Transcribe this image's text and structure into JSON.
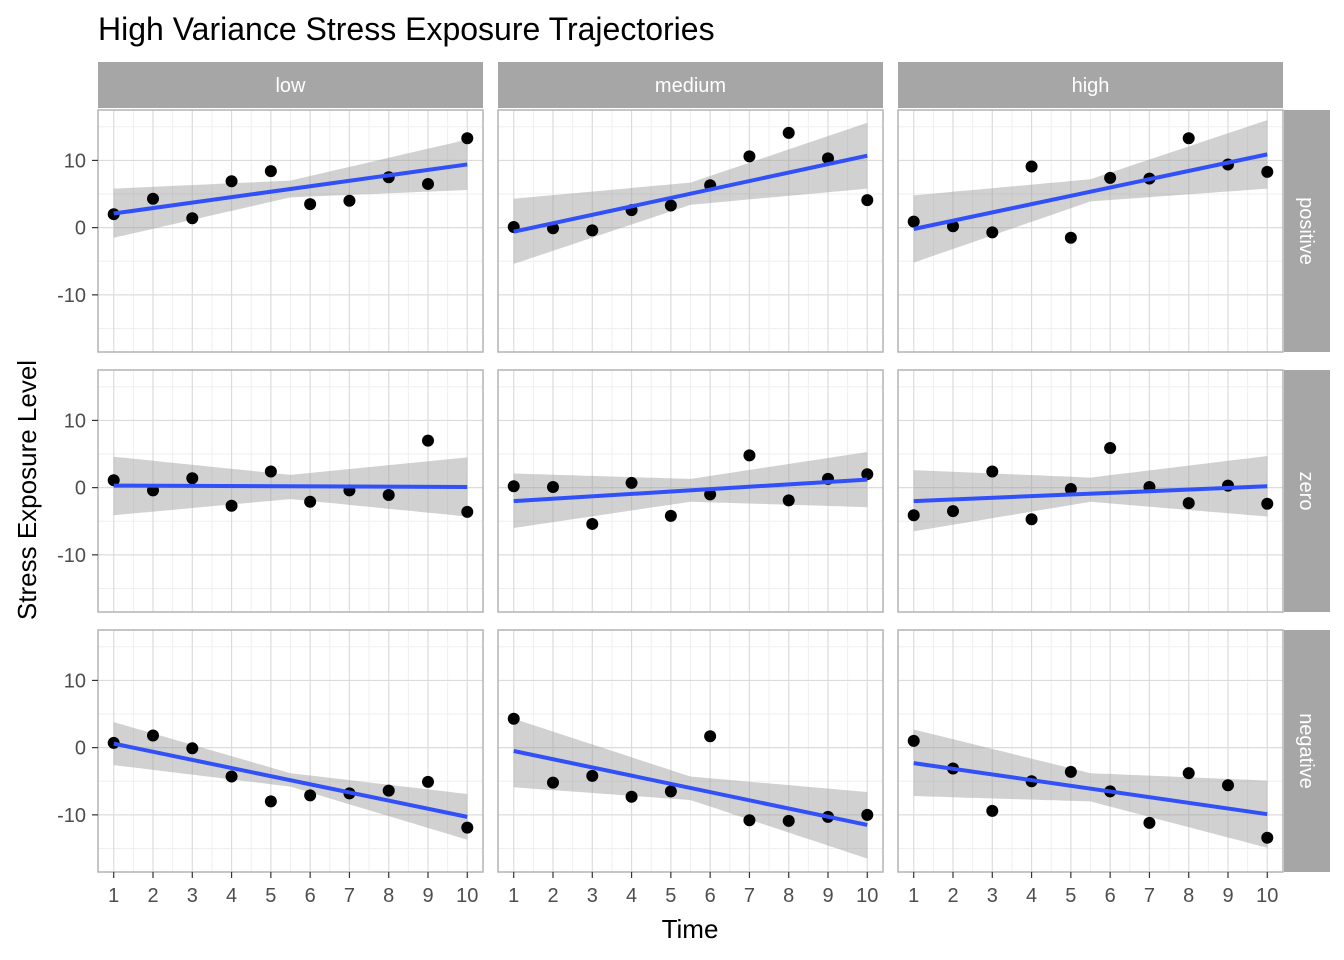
{
  "chart_data": {
    "type": "scatter",
    "title": "High Variance Stress Exposure Trajectories",
    "xlabel": "Time",
    "ylabel": "Stress Exposure Level",
    "x_ticks": [
      1,
      2,
      3,
      4,
      5,
      6,
      7,
      8,
      9,
      10
    ],
    "y_ticks": [
      -10,
      0,
      10
    ],
    "xlim": [
      0.6,
      10.4
    ],
    "ylim": [
      -18.5,
      17.5
    ],
    "grid": true,
    "facet_columns": [
      "low",
      "medium",
      "high"
    ],
    "facet_rows": [
      "positive",
      "zero",
      "negative"
    ],
    "colors": {
      "points": "#000000",
      "trend_line": "#3150f7",
      "confidence_band": "#999999",
      "strip_background": "#a6a6a6",
      "panel_border": "#b3b3b3",
      "grid_major": "#dcdcdc",
      "grid_minor": "#efefef"
    },
    "panels": [
      {
        "col": "low",
        "row": "positive",
        "points": [
          [
            1,
            2.0
          ],
          [
            2,
            4.3
          ],
          [
            3,
            1.4
          ],
          [
            4,
            6.9
          ],
          [
            5,
            8.4
          ],
          [
            6,
            3.5
          ],
          [
            7,
            4.0
          ],
          [
            8,
            7.5
          ],
          [
            9,
            6.5
          ],
          [
            10,
            13.3
          ]
        ],
        "fit": [
          [
            1,
            2.1
          ],
          [
            10,
            9.4
          ]
        ],
        "band_upper": [
          [
            1,
            5.8
          ],
          [
            5.5,
            7.0
          ],
          [
            10,
            13.1
          ]
        ],
        "band_lower": [
          [
            1,
            -1.5
          ],
          [
            5.5,
            4.5
          ],
          [
            10,
            5.6
          ]
        ]
      },
      {
        "col": "medium",
        "row": "positive",
        "points": [
          [
            1,
            0.1
          ],
          [
            2,
            -0.1
          ],
          [
            3,
            -0.4
          ],
          [
            4,
            2.6
          ],
          [
            5,
            3.3
          ],
          [
            6,
            6.3
          ],
          [
            7,
            10.6
          ],
          [
            8,
            14.1
          ],
          [
            9,
            10.3
          ],
          [
            10,
            4.1
          ]
        ],
        "fit": [
          [
            1,
            -0.6
          ],
          [
            10,
            10.7
          ]
        ],
        "band_upper": [
          [
            1,
            4.3
          ],
          [
            5.5,
            6.7
          ],
          [
            10,
            15.6
          ]
        ],
        "band_lower": [
          [
            1,
            -5.4
          ],
          [
            5.5,
            3.4
          ],
          [
            10,
            5.8
          ]
        ]
      },
      {
        "col": "high",
        "row": "positive",
        "points": [
          [
            1,
            0.9
          ],
          [
            2,
            0.2
          ],
          [
            3,
            -0.7
          ],
          [
            4,
            9.1
          ],
          [
            5,
            -1.5
          ],
          [
            6,
            7.4
          ],
          [
            7,
            7.3
          ],
          [
            8,
            13.3
          ],
          [
            9,
            9.4
          ],
          [
            10,
            8.3
          ]
        ],
        "fit": [
          [
            1,
            -0.2
          ],
          [
            10,
            10.9
          ]
        ],
        "band_upper": [
          [
            1,
            4.8
          ],
          [
            5.5,
            7.2
          ],
          [
            10,
            16.0
          ]
        ],
        "band_lower": [
          [
            1,
            -5.2
          ],
          [
            5.5,
            3.9
          ],
          [
            10,
            5.8
          ]
        ]
      },
      {
        "col": "low",
        "row": "zero",
        "points": [
          [
            1,
            1.1
          ],
          [
            2,
            -0.4
          ],
          [
            3,
            1.4
          ],
          [
            4,
            -2.7
          ],
          [
            5,
            2.4
          ],
          [
            6,
            -2.1
          ],
          [
            7,
            -0.4
          ],
          [
            8,
            -1.1
          ],
          [
            9,
            7.0
          ],
          [
            10,
            -3.6
          ]
        ],
        "fit": [
          [
            1,
            0.3
          ],
          [
            10,
            0.1
          ]
        ],
        "band_upper": [
          [
            1,
            4.6
          ],
          [
            5.5,
            1.9
          ],
          [
            10,
            4.5
          ]
        ],
        "band_lower": [
          [
            1,
            -4.1
          ],
          [
            5.5,
            -1.7
          ],
          [
            10,
            -4.3
          ]
        ]
      },
      {
        "col": "medium",
        "row": "zero",
        "points": [
          [
            1,
            0.2
          ],
          [
            2,
            0.1
          ],
          [
            3,
            -5.4
          ],
          [
            4,
            0.7
          ],
          [
            5,
            -4.2
          ],
          [
            6,
            -1.0
          ],
          [
            7,
            4.8
          ],
          [
            8,
            -1.9
          ],
          [
            9,
            1.3
          ],
          [
            10,
            2.0
          ]
        ],
        "fit": [
          [
            1,
            -2.0
          ],
          [
            10,
            1.2
          ]
        ],
        "band_upper": [
          [
            1,
            2.1
          ],
          [
            5.5,
            1.3
          ],
          [
            10,
            5.3
          ]
        ],
        "band_lower": [
          [
            1,
            -6.0
          ],
          [
            5.5,
            -2.1
          ],
          [
            10,
            -2.9
          ]
        ]
      },
      {
        "col": "high",
        "row": "zero",
        "points": [
          [
            1,
            -4.1
          ],
          [
            2,
            -3.5
          ],
          [
            3,
            2.4
          ],
          [
            4,
            -4.7
          ],
          [
            5,
            -0.2
          ],
          [
            6,
            5.9
          ],
          [
            7,
            0.1
          ],
          [
            8,
            -2.3
          ],
          [
            9,
            0.3
          ],
          [
            10,
            -2.4
          ]
        ],
        "fit": [
          [
            1,
            -2.0
          ],
          [
            10,
            0.2
          ]
        ],
        "band_upper": [
          [
            1,
            2.6
          ],
          [
            5.5,
            1.5
          ],
          [
            10,
            4.7
          ]
        ],
        "band_lower": [
          [
            1,
            -6.5
          ],
          [
            5.5,
            -2.1
          ],
          [
            10,
            -4.3
          ]
        ]
      },
      {
        "col": "low",
        "row": "negative",
        "points": [
          [
            1,
            0.7
          ],
          [
            2,
            1.8
          ],
          [
            3,
            -0.1
          ],
          [
            4,
            -4.3
          ],
          [
            5,
            -8.0
          ],
          [
            6,
            -7.1
          ],
          [
            7,
            -6.8
          ],
          [
            8,
            -6.4
          ],
          [
            9,
            -5.1
          ],
          [
            10,
            -11.9
          ]
        ],
        "fit": [
          [
            1,
            0.6
          ],
          [
            10,
            -10.3
          ]
        ],
        "band_upper": [
          [
            1,
            3.8
          ],
          [
            5.5,
            -3.8
          ],
          [
            10,
            -6.9
          ]
        ],
        "band_lower": [
          [
            1,
            -2.6
          ],
          [
            5.5,
            -5.8
          ],
          [
            10,
            -13.7
          ]
        ]
      },
      {
        "col": "medium",
        "row": "negative",
        "points": [
          [
            1,
            4.3
          ],
          [
            2,
            -5.2
          ],
          [
            3,
            -4.2
          ],
          [
            4,
            -7.3
          ],
          [
            5,
            -6.5
          ],
          [
            6,
            1.7
          ],
          [
            7,
            -10.8
          ],
          [
            8,
            -10.9
          ],
          [
            9,
            -10.3
          ],
          [
            10,
            -10.0
          ]
        ],
        "fit": [
          [
            1,
            -0.5
          ],
          [
            10,
            -11.5
          ]
        ],
        "band_upper": [
          [
            1,
            4.3
          ],
          [
            5.5,
            -4.3
          ],
          [
            10,
            -6.6
          ]
        ],
        "band_lower": [
          [
            1,
            -5.9
          ],
          [
            5.5,
            -7.8
          ],
          [
            10,
            -16.5
          ]
        ]
      },
      {
        "col": "high",
        "row": "negative",
        "points": [
          [
            1,
            1.0
          ],
          [
            2,
            -3.1
          ],
          [
            3,
            -9.4
          ],
          [
            4,
            -5.0
          ],
          [
            5,
            -3.6
          ],
          [
            6,
            -6.5
          ],
          [
            7,
            -11.2
          ],
          [
            8,
            -3.8
          ],
          [
            9,
            -5.6
          ],
          [
            10,
            -13.4
          ]
        ],
        "fit": [
          [
            1,
            -2.3
          ],
          [
            10,
            -9.9
          ]
        ],
        "band_upper": [
          [
            1,
            2.7
          ],
          [
            5.5,
            -3.8
          ],
          [
            10,
            -4.9
          ]
        ],
        "band_lower": [
          [
            1,
            -7.2
          ],
          [
            5.5,
            -8.0
          ],
          [
            10,
            -14.9
          ]
        ]
      }
    ]
  }
}
